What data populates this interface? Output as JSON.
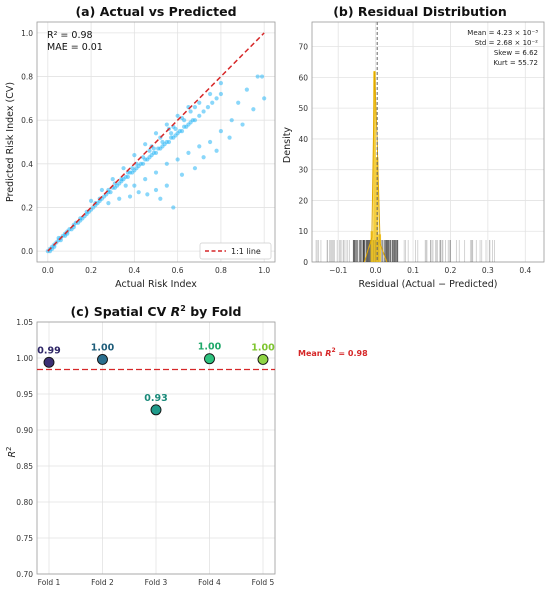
{
  "chart_data": [
    {
      "type": "scatter",
      "panel": "(a)",
      "title": "Actual vs Predicted",
      "xlabel": "Actual Risk Index",
      "ylabel": "Predicted Risk Index (CV)",
      "xlim": [
        -0.05,
        1.05
      ],
      "ylim": [
        -0.05,
        1.05
      ],
      "xticks": [
        "0.0",
        "0.2",
        "0.4",
        "0.6",
        "0.8",
        "1.0"
      ],
      "yticks": [
        "0.0",
        "0.2",
        "0.4",
        "0.6",
        "0.8",
        "1.0"
      ],
      "r2_text": "R² = 0.98",
      "mae_text": "MAE = 0.01",
      "legend": [
        {
          "label": "1:1 line",
          "color": "#d62728",
          "style": "dashed"
        }
      ],
      "point_color": "#29b6f6",
      "line_color": "#d62728",
      "points": [
        [
          0.0,
          0.0
        ],
        [
          0.01,
          0.01
        ],
        [
          0.02,
          0.02
        ],
        [
          0.03,
          0.03
        ],
        [
          0.04,
          0.04
        ],
        [
          0.05,
          0.05
        ],
        [
          0.06,
          0.05
        ],
        [
          0.07,
          0.07
        ],
        [
          0.08,
          0.08
        ],
        [
          0.09,
          0.08
        ],
        [
          0.1,
          0.1
        ],
        [
          0.11,
          0.1
        ],
        [
          0.12,
          0.12
        ],
        [
          0.13,
          0.13
        ],
        [
          0.14,
          0.13
        ],
        [
          0.15,
          0.15
        ],
        [
          0.16,
          0.15
        ],
        [
          0.17,
          0.16
        ],
        [
          0.18,
          0.18
        ],
        [
          0.19,
          0.18
        ],
        [
          0.2,
          0.19
        ],
        [
          0.21,
          0.2
        ],
        [
          0.22,
          0.21
        ],
        [
          0.23,
          0.22
        ],
        [
          0.24,
          0.23
        ],
        [
          0.25,
          0.24
        ],
        [
          0.26,
          0.25
        ],
        [
          0.27,
          0.26
        ],
        [
          0.28,
          0.27
        ],
        [
          0.29,
          0.27
        ],
        [
          0.3,
          0.29
        ],
        [
          0.31,
          0.29
        ],
        [
          0.32,
          0.3
        ],
        [
          0.33,
          0.31
        ],
        [
          0.34,
          0.32
        ],
        [
          0.35,
          0.33
        ],
        [
          0.36,
          0.34
        ],
        [
          0.37,
          0.34
        ],
        [
          0.38,
          0.36
        ],
        [
          0.39,
          0.36
        ],
        [
          0.4,
          0.37
        ],
        [
          0.41,
          0.38
        ],
        [
          0.42,
          0.39
        ],
        [
          0.43,
          0.4
        ],
        [
          0.44,
          0.4
        ],
        [
          0.45,
          0.42
        ],
        [
          0.46,
          0.42
        ],
        [
          0.47,
          0.43
        ],
        [
          0.48,
          0.44
        ],
        [
          0.49,
          0.45
        ],
        [
          0.5,
          0.45
        ],
        [
          0.51,
          0.47
        ],
        [
          0.52,
          0.47
        ],
        [
          0.53,
          0.48
        ],
        [
          0.54,
          0.49
        ],
        [
          0.55,
          0.5
        ],
        [
          0.56,
          0.5
        ],
        [
          0.57,
          0.52
        ],
        [
          0.58,
          0.52
        ],
        [
          0.59,
          0.53
        ],
        [
          0.6,
          0.54
        ],
        [
          0.61,
          0.55
        ],
        [
          0.62,
          0.55
        ],
        [
          0.63,
          0.57
        ],
        [
          0.64,
          0.57
        ],
        [
          0.65,
          0.58
        ],
        [
          0.66,
          0.59
        ],
        [
          0.67,
          0.6
        ],
        [
          0.68,
          0.6
        ],
        [
          0.7,
          0.62
        ],
        [
          0.72,
          0.64
        ],
        [
          0.74,
          0.66
        ],
        [
          0.76,
          0.68
        ],
        [
          0.78,
          0.7
        ],
        [
          0.8,
          0.72
        ],
        [
          0.35,
          0.38
        ],
        [
          0.4,
          0.44
        ],
        [
          0.45,
          0.49
        ],
        [
          0.5,
          0.54
        ],
        [
          0.55,
          0.58
        ],
        [
          0.6,
          0.62
        ],
        [
          0.65,
          0.66
        ],
        [
          0.7,
          0.68
        ],
        [
          0.75,
          0.72
        ],
        [
          0.8,
          0.77
        ],
        [
          0.3,
          0.33
        ],
        [
          0.25,
          0.28
        ],
        [
          0.2,
          0.23
        ],
        [
          0.4,
          0.3
        ],
        [
          0.45,
          0.33
        ],
        [
          0.5,
          0.36
        ],
        [
          0.55,
          0.4
        ],
        [
          0.6,
          0.42
        ],
        [
          0.65,
          0.45
        ],
        [
          0.7,
          0.48
        ],
        [
          0.75,
          0.5
        ],
        [
          0.8,
          0.55
        ],
        [
          0.85,
          0.6
        ],
        [
          0.5,
          0.28
        ],
        [
          0.55,
          0.3
        ],
        [
          0.62,
          0.35
        ],
        [
          0.68,
          0.38
        ],
        [
          0.72,
          0.43
        ],
        [
          0.78,
          0.46
        ],
        [
          0.84,
          0.52
        ],
        [
          0.9,
          0.58
        ],
        [
          0.95,
          0.65
        ],
        [
          0.97,
          0.8
        ],
        [
          0.99,
          0.8
        ],
        [
          1.0,
          0.7
        ],
        [
          0.92,
          0.74
        ],
        [
          0.88,
          0.68
        ],
        [
          0.58,
          0.2
        ],
        [
          0.52,
          0.24
        ],
        [
          0.46,
          0.26
        ],
        [
          0.42,
          0.27
        ],
        [
          0.38,
          0.25
        ],
        [
          0.33,
          0.24
        ],
        [
          0.36,
          0.3
        ],
        [
          0.28,
          0.22
        ],
        [
          0.48,
          0.48
        ],
        [
          0.52,
          0.52
        ],
        [
          0.56,
          0.56
        ],
        [
          0.58,
          0.57
        ],
        [
          0.62,
          0.61
        ],
        [
          0.66,
          0.64
        ],
        [
          0.68,
          0.66
        ],
        [
          0.63,
          0.6
        ],
        [
          0.59,
          0.56
        ],
        [
          0.57,
          0.54
        ],
        [
          0.53,
          0.5
        ],
        [
          0.49,
          0.47
        ],
        [
          0.47,
          0.46
        ],
        [
          0.44,
          0.43
        ],
        [
          0.41,
          0.4
        ],
        [
          0.39,
          0.38
        ],
        [
          0.37,
          0.36
        ],
        [
          0.34,
          0.33
        ],
        [
          0.31,
          0.31
        ],
        [
          0.28,
          0.28
        ],
        [
          0.24,
          0.24
        ],
        [
          0.22,
          0.22
        ],
        [
          0.18,
          0.17
        ],
        [
          0.15,
          0.14
        ],
        [
          0.12,
          0.11
        ],
        [
          0.09,
          0.09
        ],
        [
          0.06,
          0.06
        ],
        [
          0.03,
          0.02
        ],
        [
          0.02,
          0.01
        ],
        [
          0.01,
          0.0
        ],
        [
          0.05,
          0.06
        ],
        [
          0.08,
          0.07
        ]
      ]
    },
    {
      "type": "histogram",
      "panel": "(b)",
      "title": "Residual Distribution",
      "xlabel": "Residual (Actual − Predicted)",
      "ylabel": "Density",
      "xlim": [
        -0.17,
        0.45
      ],
      "ylim": [
        0,
        78
      ],
      "xticks": [
        -0.1,
        0.0,
        0.1,
        0.2,
        0.3,
        0.4
      ],
      "xtick_labels": [
        "−0.1",
        "0.0",
        "0.1",
        "0.2",
        "0.3",
        "0.4"
      ],
      "yticks": [
        0,
        10,
        20,
        30,
        40,
        50,
        60,
        70
      ],
      "stats": {
        "mean": "Mean = 4.23 × 10⁻³",
        "std": "Std = 2.68 × 10⁻²",
        "skew": "Skew = 6.62",
        "kurt": "Kurt = 55.72"
      },
      "bar_color": "#f5c518",
      "bins": [
        {
          "x": -0.01,
          "density": 10
        },
        {
          "x": -0.003,
          "density": 62
        },
        {
          "x": 0.004,
          "density": 34
        },
        {
          "x": 0.011,
          "density": 9
        }
      ],
      "rug_range": [
        -0.16,
        0.32
      ],
      "mean_line": 0.0042
    },
    {
      "type": "scatter",
      "panel": "(c)",
      "title": "Spatial CV R² by Fold",
      "ylabel": "R²",
      "categories": [
        "Fold 1",
        "Fold 2",
        "Fold 3",
        "Fold 4",
        "Fold 5"
      ],
      "values": [
        0.99,
        1.0,
        0.93,
        1.0,
        1.0
      ],
      "value_labels": [
        "0.99",
        "1.00",
        "0.93",
        "1.00",
        "1.00"
      ],
      "plot_values": [
        0.994,
        0.998,
        0.928,
        0.999,
        0.998
      ],
      "colors": [
        "#3b2f74",
        "#2b6f8f",
        "#1f9a8a",
        "#2ec27e",
        "#8fd444"
      ],
      "label_colors": [
        "#2d2566",
        "#1f5d7a",
        "#1a8a7a",
        "#1fa86a",
        "#7ec52f"
      ],
      "ylim": [
        0.7,
        1.05
      ],
      "yticks": [
        "0.70",
        "0.75",
        "0.80",
        "0.85",
        "0.90",
        "0.95",
        "1.00",
        "1.05"
      ],
      "mean_line": 0.984,
      "mean_label": "Mean R² = 0.98",
      "mean_color": "#d62728"
    }
  ]
}
